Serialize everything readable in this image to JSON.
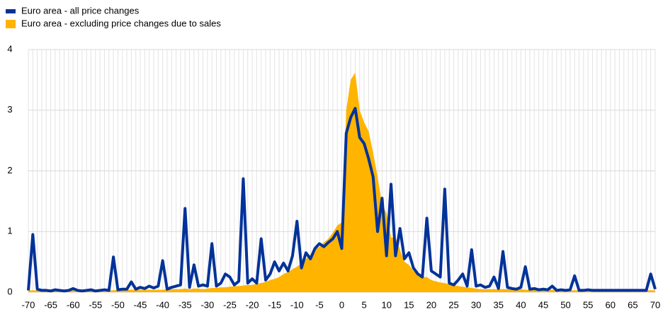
{
  "chart_data": {
    "type": "line",
    "x": [
      -70,
      -69,
      -68,
      -67,
      -66,
      -65,
      -64,
      -63,
      -62,
      -61,
      -60,
      -59,
      -58,
      -57,
      -56,
      -55,
      -54,
      -53,
      -52,
      -51,
      -50,
      -49,
      -48,
      -47,
      -46,
      -45,
      -44,
      -43,
      -42,
      -41,
      -40,
      -39,
      -38,
      -37,
      -36,
      -35,
      -34,
      -33,
      -32,
      -31,
      -30,
      -29,
      -28,
      -27,
      -26,
      -25,
      -24,
      -23,
      -22,
      -21,
      -20,
      -19,
      -18,
      -17,
      -16,
      -15,
      -14,
      -13,
      -12,
      -11,
      -10,
      -9,
      -8,
      -7,
      -6,
      -5,
      -4,
      -3,
      -2,
      -1,
      0,
      1,
      2,
      3,
      4,
      5,
      6,
      7,
      8,
      9,
      10,
      11,
      12,
      13,
      14,
      15,
      16,
      17,
      18,
      19,
      20,
      21,
      22,
      23,
      24,
      25,
      26,
      27,
      28,
      29,
      30,
      31,
      32,
      33,
      34,
      35,
      36,
      37,
      38,
      39,
      40,
      41,
      42,
      43,
      44,
      45,
      46,
      47,
      48,
      49,
      50,
      51,
      52,
      53,
      54,
      55,
      56,
      57,
      58,
      59,
      60,
      61,
      62,
      63,
      64,
      65,
      66,
      67,
      68,
      69,
      70
    ],
    "series": [
      {
        "name": "Euro area - all price changes",
        "color": "#003299",
        "kind": "line",
        "values": [
          0.03,
          0.95,
          0.05,
          0.03,
          0.03,
          0.02,
          0.04,
          0.03,
          0.02,
          0.03,
          0.06,
          0.03,
          0.02,
          0.03,
          0.04,
          0.02,
          0.03,
          0.04,
          0.03,
          0.58,
          0.04,
          0.05,
          0.05,
          0.17,
          0.05,
          0.08,
          0.06,
          0.1,
          0.07,
          0.1,
          0.52,
          0.05,
          0.08,
          0.1,
          0.12,
          1.38,
          0.08,
          0.45,
          0.1,
          0.12,
          0.1,
          0.8,
          0.1,
          0.15,
          0.3,
          0.25,
          0.12,
          0.18,
          1.87,
          0.15,
          0.22,
          0.15,
          0.88,
          0.2,
          0.3,
          0.5,
          0.35,
          0.48,
          0.35,
          0.6,
          1.17,
          0.4,
          0.65,
          0.55,
          0.72,
          0.8,
          0.75,
          0.82,
          0.88,
          1.0,
          0.72,
          2.62,
          2.88,
          3.03,
          2.55,
          2.45,
          2.2,
          1.9,
          1.0,
          1.55,
          0.6,
          1.78,
          0.6,
          1.05,
          0.55,
          0.65,
          0.4,
          0.3,
          0.25,
          1.22,
          0.35,
          0.3,
          0.25,
          1.7,
          0.15,
          0.12,
          0.2,
          0.3,
          0.1,
          0.7,
          0.1,
          0.12,
          0.08,
          0.1,
          0.25,
          0.06,
          0.67,
          0.08,
          0.06,
          0.05,
          0.08,
          0.42,
          0.05,
          0.06,
          0.04,
          0.05,
          0.04,
          0.1,
          0.03,
          0.04,
          0.03,
          0.04,
          0.27,
          0.03,
          0.03,
          0.04,
          0.03,
          0.03,
          0.03,
          0.03,
          0.03,
          0.03,
          0.03,
          0.03,
          0.03,
          0.03,
          0.03,
          0.03,
          0.03,
          0.3,
          0.05
        ]
      },
      {
        "name": "Euro area - excluding price changes due to sales",
        "color": "#ffb400",
        "kind": "area",
        "values": [
          0.03,
          0.03,
          0.03,
          0.03,
          0.03,
          0.03,
          0.03,
          0.03,
          0.03,
          0.03,
          0.03,
          0.03,
          0.03,
          0.03,
          0.03,
          0.03,
          0.03,
          0.03,
          0.03,
          0.03,
          0.04,
          0.04,
          0.04,
          0.04,
          0.04,
          0.04,
          0.04,
          0.04,
          0.04,
          0.04,
          0.04,
          0.05,
          0.05,
          0.05,
          0.05,
          0.06,
          0.05,
          0.06,
          0.06,
          0.05,
          0.06,
          0.07,
          0.07,
          0.08,
          0.08,
          0.09,
          0.1,
          0.1,
          0.11,
          0.12,
          0.12,
          0.14,
          0.15,
          0.17,
          0.2,
          0.22,
          0.25,
          0.3,
          0.33,
          0.38,
          0.42,
          0.48,
          0.55,
          0.62,
          0.7,
          0.75,
          0.82,
          0.88,
          0.98,
          1.1,
          1.15,
          3.0,
          3.5,
          3.62,
          3.0,
          2.8,
          2.65,
          2.3,
          1.9,
          1.45,
          1.3,
          0.9,
          0.9,
          0.7,
          0.5,
          0.45,
          0.35,
          0.3,
          0.25,
          0.25,
          0.2,
          0.18,
          0.16,
          0.15,
          0.13,
          0.12,
          0.1,
          0.09,
          0.08,
          0.07,
          0.06,
          0.05,
          0.05,
          0.05,
          0.05,
          0.05,
          0.05,
          0.05,
          0.05,
          0.05,
          0.05,
          0.04,
          0.04,
          0.04,
          0.04,
          0.04,
          0.04,
          0.04,
          0.04,
          0.04,
          0.04,
          0.03,
          0.03,
          0.03,
          0.03,
          0.03,
          0.03,
          0.03,
          0.03,
          0.03,
          0.03,
          0.03,
          0.03,
          0.03,
          0.03,
          0.03,
          0.03,
          0.03,
          0.03,
          0.03,
          0.03
        ]
      }
    ],
    "xlim": [
      -70,
      70
    ],
    "xticks": [
      -70,
      -65,
      -60,
      -55,
      -50,
      -45,
      -40,
      -35,
      -30,
      -25,
      -20,
      -15,
      -10,
      -5,
      0,
      5,
      10,
      15,
      20,
      25,
      30,
      35,
      40,
      45,
      50,
      55,
      60,
      65,
      70
    ],
    "ylim": [
      0,
      4
    ],
    "yticks": [
      0,
      1,
      2,
      3,
      4
    ],
    "grid": true,
    "legend": "top-left"
  }
}
